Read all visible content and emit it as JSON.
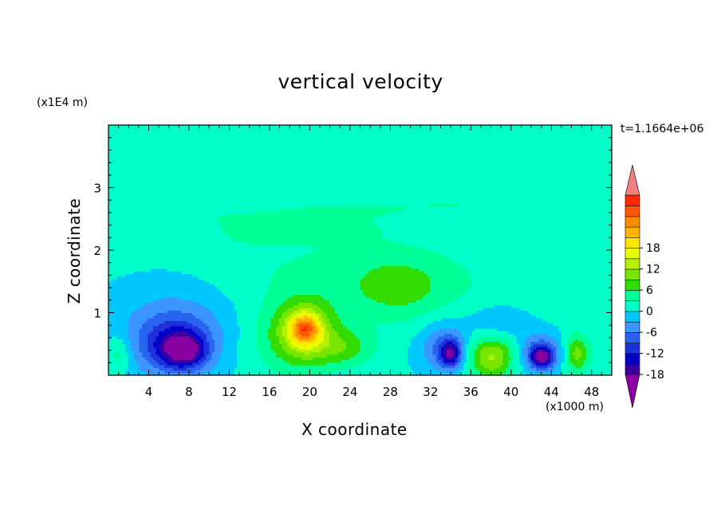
{
  "chart_data": {
    "type": "heatmap",
    "title": "vertical velocity",
    "xlabel": "X coordinate",
    "ylabel": "Z coordinate",
    "x_unit": "(x1000 m)",
    "y_unit": "(x1E4 m)",
    "time_label": "t=1.1664e+06",
    "xlim": [
      0,
      50
    ],
    "ylim": [
      0,
      4
    ],
    "x_ticks": [
      4,
      8,
      12,
      16,
      20,
      24,
      28,
      32,
      36,
      40,
      44,
      48
    ],
    "y_ticks": [
      1,
      2,
      3
    ],
    "colorbar": {
      "min": -21,
      "max": 21,
      "step": 3,
      "labels": [
        18,
        12,
        6,
        0,
        -6,
        -12,
        -18
      ],
      "extend": "both",
      "colors": [
        "#8b00a0",
        "#3a00a0",
        "#0000c8",
        "#1e32dc",
        "#2864f0",
        "#3c96ff",
        "#00c8ff",
        "#00ffc8",
        "#00ff96",
        "#32dc00",
        "#78e600",
        "#b4f000",
        "#e6ff00",
        "#ffe600",
        "#ffb400",
        "#ff8c00",
        "#ff5a00",
        "#ff2800",
        "#f08080"
      ]
    },
    "background_value": 0.5,
    "features": [
      {
        "x": 17.5,
        "z": 0.55,
        "v": 4,
        "rx": 5,
        "rz": 0.6
      },
      {
        "x": 19.5,
        "z": 0.7,
        "v": 10,
        "rx": 3,
        "rz": 0.5
      },
      {
        "x": 19.5,
        "z": 0.75,
        "v": 16,
        "rx": 1.5,
        "rz": 0.25
      },
      {
        "x": 23.5,
        "z": 0.45,
        "v": 6,
        "rx": 3,
        "rz": 0.3
      },
      {
        "x": 23,
        "z": 1.6,
        "v": 3,
        "rx": 16,
        "rz": 0.75
      },
      {
        "x": 29,
        "z": 1.4,
        "v": 5,
        "rx": 5,
        "rz": 0.5
      },
      {
        "x": 20,
        "z": 2.4,
        "v": 3,
        "rx": 8,
        "rz": 0.25
      },
      {
        "x": 7,
        "z": 0.8,
        "v": -5,
        "rx": 7,
        "rz": 0.8
      },
      {
        "x": 6.5,
        "z": 0.5,
        "v": -10,
        "rx": 3.5,
        "rz": 0.45
      },
      {
        "x": 7.5,
        "z": 0.4,
        "v": -14,
        "rx": 2,
        "rz": 0.25
      },
      {
        "x": 1,
        "z": 0.35,
        "v": 5,
        "rx": 1.2,
        "rz": 0.3
      },
      {
        "x": 14,
        "z": 2.3,
        "v": 2,
        "rx": 3,
        "rz": 0.2
      },
      {
        "x": 33.5,
        "z": 0.45,
        "v": -8,
        "rx": 2.5,
        "rz": 0.4
      },
      {
        "x": 34,
        "z": 0.35,
        "v": -14,
        "rx": 1,
        "rz": 0.2
      },
      {
        "x": 38,
        "z": 0.3,
        "v": 12,
        "rx": 2.5,
        "rz": 0.35
      },
      {
        "x": 43,
        "z": 0.35,
        "v": -10,
        "rx": 2.2,
        "rz": 0.3
      },
      {
        "x": 43,
        "z": 0.3,
        "v": -14,
        "rx": 1,
        "rz": 0.15
      },
      {
        "x": 46.5,
        "z": 0.35,
        "v": 10,
        "rx": 1.3,
        "rz": 0.3
      },
      {
        "x": 39,
        "z": 0.85,
        "v": -4,
        "rx": 3,
        "rz": 0.3
      },
      {
        "x": 40.5,
        "z": 2.45,
        "v": 2,
        "rx": 4,
        "rz": 0.2
      },
      {
        "x": 42,
        "z": 1.5,
        "v": 1.5,
        "rx": 5,
        "rz": 0.45
      },
      {
        "x": 6,
        "z": 2.55,
        "v": 2,
        "rx": 8,
        "rz": 0.15
      },
      {
        "x": 24,
        "z": 2.65,
        "v": 2,
        "rx": 8,
        "rz": 0.12
      },
      {
        "x": 34,
        "z": 2.75,
        "v": 2,
        "rx": 6,
        "rz": 0.12
      },
      {
        "x": 44,
        "z": 2.8,
        "v": 2,
        "rx": 6,
        "rz": 0.12
      },
      {
        "x": 30,
        "z": 3.0,
        "v": 2,
        "rx": 3,
        "rz": 0.08
      }
    ]
  }
}
